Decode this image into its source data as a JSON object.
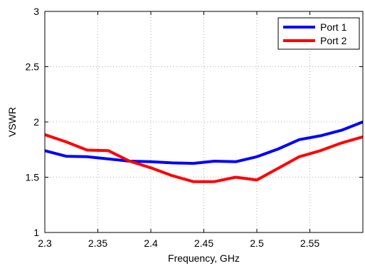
{
  "chart_data": {
    "type": "line",
    "title": "",
    "xlabel": "Frequency, GHz",
    "ylabel": "VSWR",
    "xlim": [
      2.3,
      2.6
    ],
    "ylim": [
      1,
      3
    ],
    "xticks": [
      2.3,
      2.35,
      2.4,
      2.45,
      2.5,
      2.55
    ],
    "xtick_labels": [
      "2.3",
      "2.35",
      "2.4",
      "2.45",
      "2.5",
      "2.55"
    ],
    "yticks": [
      1,
      1.5,
      2,
      2.5,
      3
    ],
    "ytick_labels": [
      "1",
      "1.5",
      "2",
      "2.5",
      "3"
    ],
    "grid": true,
    "legend_position": "top-right",
    "series": [
      {
        "name": "Port 1",
        "color": "#0000ff",
        "x": [
          2.3,
          2.32,
          2.34,
          2.36,
          2.38,
          2.4,
          2.42,
          2.44,
          2.46,
          2.48,
          2.5,
          2.52,
          2.54,
          2.56,
          2.58,
          2.6
        ],
        "y": [
          1.74,
          1.69,
          1.685,
          1.665,
          1.645,
          1.64,
          1.63,
          1.625,
          1.645,
          1.64,
          1.685,
          1.755,
          1.84,
          1.875,
          1.925,
          2.0
        ]
      },
      {
        "name": "Port 2",
        "color": "#ff0000",
        "x": [
          2.3,
          2.32,
          2.34,
          2.36,
          2.38,
          2.4,
          2.42,
          2.44,
          2.46,
          2.48,
          2.5,
          2.52,
          2.54,
          2.56,
          2.58,
          2.6
        ],
        "y": [
          1.885,
          1.82,
          1.745,
          1.74,
          1.645,
          1.585,
          1.515,
          1.46,
          1.46,
          1.5,
          1.475,
          1.58,
          1.685,
          1.74,
          1.81,
          1.865
        ]
      }
    ]
  }
}
